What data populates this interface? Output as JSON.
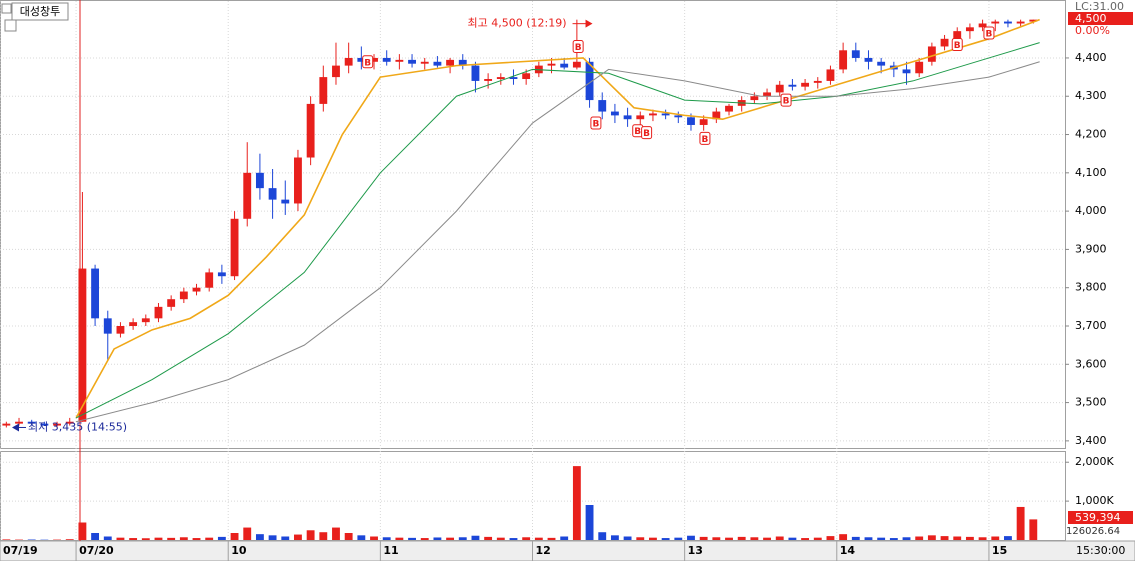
{
  "chart_data": {
    "type": "candlestick",
    "stock_name": "대성창투",
    "lc_label": "LC:31.00",
    "last_label": "4,500",
    "change_label": "0.00%",
    "volume_last_label": "539,394",
    "volume_ma_label": "126026.64",
    "time_label": "15:30:00",
    "up_color": "#e8201c",
    "down_color": "#1c46d8",
    "xlim": [
      0,
      84
    ],
    "xticks": [
      {
        "value": 0,
        "label": "07/19"
      },
      {
        "value": 6,
        "label": "07/20"
      },
      {
        "value": 18,
        "label": "10"
      },
      {
        "value": 30,
        "label": "11"
      },
      {
        "value": 42,
        "label": "12"
      },
      {
        "value": 54,
        "label": "13"
      },
      {
        "value": 66,
        "label": "14"
      },
      {
        "value": 78,
        "label": "15"
      }
    ],
    "ylim": [
      3384,
      4520
    ],
    "yticks": [
      {
        "value": 3400,
        "label": "3,400"
      },
      {
        "value": 3500,
        "label": "3,500"
      },
      {
        "value": 3600,
        "label": "3,600"
      },
      {
        "value": 3700,
        "label": "3,700"
      },
      {
        "value": 3800,
        "label": "3,800"
      },
      {
        "value": 3900,
        "label": "3,900"
      },
      {
        "value": 4000,
        "label": "4,000"
      },
      {
        "value": 4100,
        "label": "4,100"
      },
      {
        "value": 4200,
        "label": "4,200"
      },
      {
        "value": 4300,
        "label": "4,300"
      },
      {
        "value": 4400,
        "label": "4,400"
      }
    ],
    "ohlc": {
      "open": [
        3440,
        3445,
        3450,
        3445,
        3440,
        3445,
        3450,
        3850,
        3720,
        3680,
        3700,
        3710,
        3720,
        3750,
        3770,
        3790,
        3800,
        3840,
        3830,
        3980,
        4100,
        4060,
        4030,
        4020,
        4140,
        4280,
        4350,
        4380,
        4400,
        4390,
        4400,
        4390,
        4395,
        4385,
        4390,
        4380,
        4395,
        4380,
        4340,
        4345,
        4350,
        4345,
        4360,
        4380,
        4385,
        4375,
        4390,
        4290,
        4260,
        4250,
        4240,
        4250,
        4255,
        4250,
        4245,
        4225,
        4240,
        4260,
        4275,
        4290,
        4300,
        4310,
        4330,
        4325,
        4335,
        4340,
        4370,
        4420,
        4400,
        4390,
        4380,
        4370,
        4360,
        4390,
        4430,
        4450,
        4470,
        4480,
        4490,
        4495,
        4490,
        4495
      ],
      "high": [
        3450,
        3460,
        3455,
        3450,
        3450,
        3460,
        4050,
        3860,
        3740,
        3710,
        3720,
        3730,
        3760,
        3780,
        3800,
        3810,
        3850,
        3860,
        4000,
        4180,
        4150,
        4110,
        4080,
        4160,
        4300,
        4380,
        4440,
        4440,
        4430,
        4410,
        4420,
        4410,
        4410,
        4400,
        4405,
        4400,
        4410,
        4390,
        4360,
        4360,
        4370,
        4370,
        4390,
        4400,
        4400,
        4500,
        4400,
        4310,
        4280,
        4270,
        4260,
        4265,
        4265,
        4260,
        4255,
        4250,
        4270,
        4280,
        4300,
        4310,
        4320,
        4340,
        4345,
        4345,
        4350,
        4380,
        4440,
        4440,
        4420,
        4400,
        4390,
        4390,
        4400,
        4440,
        4460,
        4480,
        4490,
        4500,
        4500,
        4500,
        4500,
        4500
      ],
      "low": [
        3435,
        3440,
        3440,
        3440,
        3435,
        3440,
        3450,
        3700,
        3610,
        3670,
        3690,
        3700,
        3710,
        3740,
        3760,
        3780,
        3790,
        3810,
        3820,
        3960,
        4030,
        3980,
        3990,
        4000,
        4120,
        4260,
        4330,
        4360,
        4370,
        4370,
        4380,
        4370,
        4375,
        4370,
        4375,
        4360,
        4370,
        4310,
        4320,
        4330,
        4330,
        4330,
        4350,
        4360,
        4370,
        4370,
        4270,
        4240,
        4230,
        4220,
        4220,
        4235,
        4240,
        4230,
        4210,
        4210,
        4230,
        4250,
        4260,
        4280,
        4290,
        4300,
        4315,
        4315,
        4320,
        4330,
        4360,
        4390,
        4370,
        4360,
        4350,
        4330,
        4350,
        4380,
        4420,
        4440,
        4450,
        4470,
        4470,
        4480,
        4480,
        4490
      ],
      "close": [
        3445,
        3450,
        3445,
        3440,
        3445,
        3450,
        3850,
        3720,
        3680,
        3700,
        3710,
        3720,
        3750,
        3770,
        3790,
        3800,
        3840,
        3830,
        3980,
        4100,
        4060,
        4030,
        4020,
        4140,
        4280,
        4350,
        4380,
        4400,
        4390,
        4400,
        4390,
        4395,
        4385,
        4390,
        4380,
        4395,
        4380,
        4340,
        4345,
        4350,
        4345,
        4360,
        4380,
        4385,
        4375,
        4390,
        4290,
        4260,
        4250,
        4240,
        4250,
        4255,
        4250,
        4245,
        4225,
        4240,
        4260,
        4275,
        4290,
        4300,
        4310,
        4330,
        4325,
        4335,
        4340,
        4370,
        4420,
        4400,
        4390,
        4380,
        4370,
        4360,
        4390,
        4430,
        4450,
        4470,
        4480,
        4490,
        4495,
        4490,
        4495,
        4500
      ]
    },
    "moving_averages": [
      {
        "color": "#f0a818",
        "x": [
          6,
          9,
          12,
          15,
          18,
          21,
          24,
          27,
          30,
          36,
          46,
          50,
          54,
          57,
          60,
          66,
          72,
          78,
          82
        ],
        "values": [
          3460,
          3640,
          3690,
          3720,
          3780,
          3880,
          3990,
          4200,
          4350,
          4380,
          4400,
          4270,
          4250,
          4240,
          4270,
          4330,
          4390,
          4450,
          4500
        ]
      },
      {
        "color": "#1e9a4a",
        "x": [
          6,
          12,
          18,
          24,
          30,
          36,
          42,
          48,
          54,
          60,
          66,
          72,
          78,
          82
        ],
        "values": [
          3460,
          3560,
          3680,
          3840,
          4100,
          4300,
          4370,
          4360,
          4290,
          4280,
          4300,
          4340,
          4400,
          4440
        ]
      },
      {
        "color": "#8a8a8a",
        "x": [
          6,
          12,
          18,
          24,
          30,
          36,
          42,
          48,
          54,
          60,
          66,
          72,
          78,
          82
        ],
        "values": [
          3450,
          3500,
          3560,
          3650,
          3800,
          4000,
          4230,
          4370,
          4340,
          4300,
          4300,
          4320,
          4350,
          4390
        ]
      }
    ],
    "buy_markers": {
      "label": "B",
      "x": [
        29,
        45.6,
        47,
        50.3,
        51,
        55.6,
        62,
        75.5,
        78
      ],
      "y": [
        4390,
        4430,
        4230,
        4210,
        4205,
        4190,
        4290,
        4435,
        4465
      ]
    },
    "annotations": [
      {
        "text": "최고 4,500 (12:19)",
        "x": 45,
        "y": 4500,
        "color": "#e8201c"
      },
      {
        "text": "최저 3,435 (14:55)",
        "x": 0,
        "y": 3435,
        "color": "#1c2a9a"
      }
    ],
    "volume": {
      "ylim": [
        0,
        2263
      ],
      "yticks": [
        {
          "value": 1000,
          "label": "1,000K"
        },
        {
          "value": 2000,
          "label": "2,000K"
        }
      ],
      "values": [
        15,
        10,
        12,
        8,
        10,
        20,
        450,
        180,
        90,
        60,
        50,
        45,
        60,
        55,
        70,
        50,
        60,
        80,
        180,
        320,
        150,
        120,
        90,
        140,
        250,
        200,
        320,
        180,
        120,
        90,
        70,
        60,
        55,
        50,
        65,
        60,
        70,
        110,
        80,
        60,
        50,
        70,
        60,
        55,
        90,
        1900,
        900,
        200,
        120,
        90,
        70,
        60,
        50,
        60,
        110,
        80,
        70,
        60,
        80,
        70,
        60,
        90,
        60,
        50,
        60,
        100,
        150,
        80,
        70,
        60,
        50,
        70,
        90,
        120,
        100,
        90,
        80,
        70,
        90,
        100,
        850,
        530
      ]
    }
  }
}
